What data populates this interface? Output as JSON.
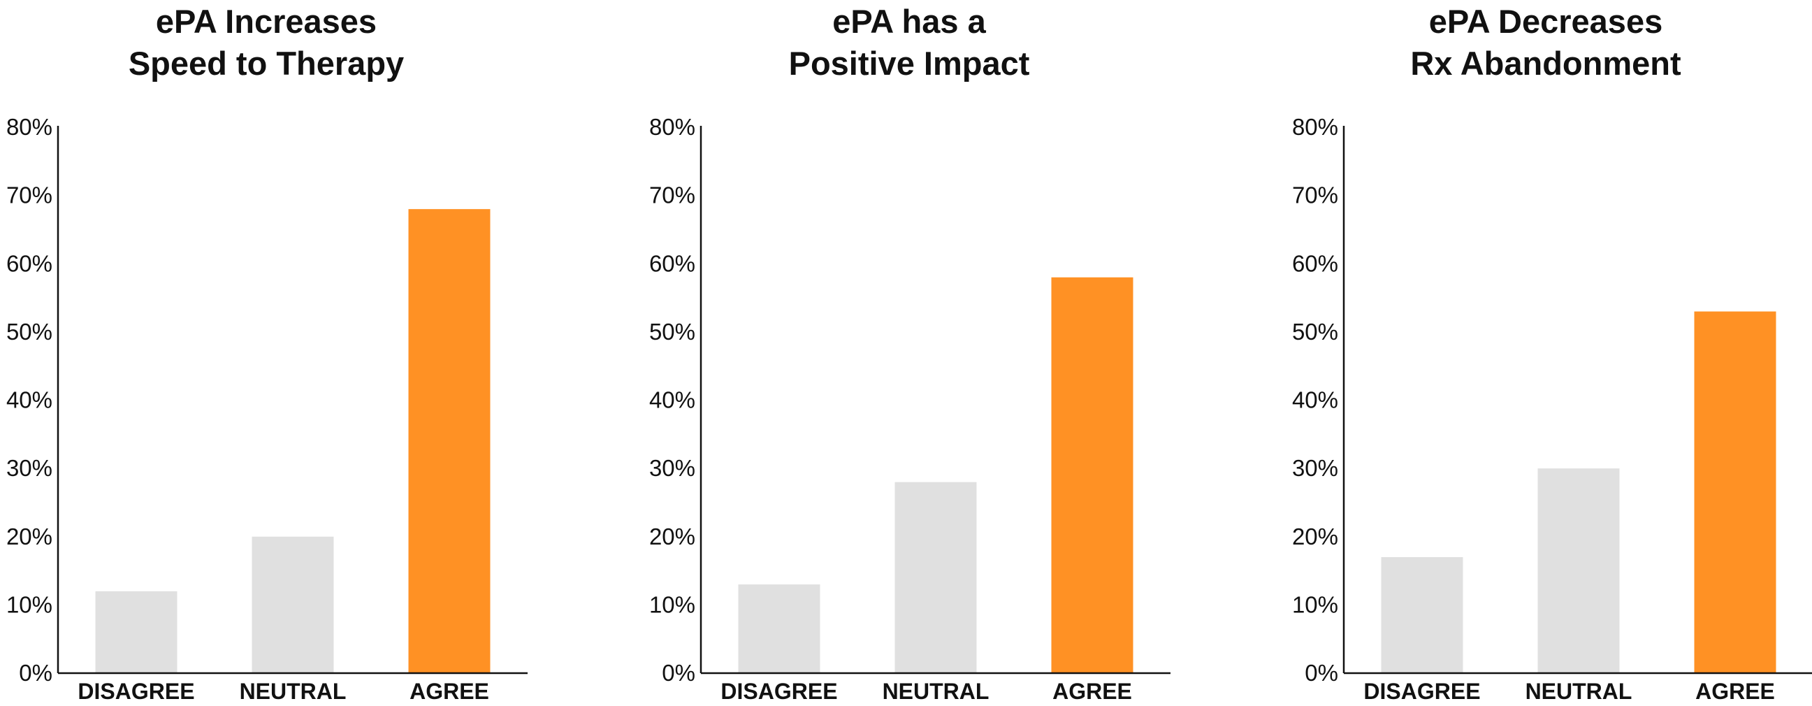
{
  "colors": {
    "highlight": "#FF9124",
    "neutral": "#E0E0E0",
    "text": "#111111",
    "axis": "#111111"
  },
  "chart_data": [
    {
      "type": "bar",
      "title": [
        "ePA Increases",
        "Speed to Therapy"
      ],
      "categories": [
        "DISAGREE",
        "NEUTRAL",
        "AGREE"
      ],
      "values": [
        12,
        20,
        68
      ],
      "ylim": [
        0,
        80
      ],
      "yticks": [
        0,
        10,
        20,
        30,
        40,
        50,
        60,
        70,
        80
      ],
      "ytick_suffix": "%",
      "bar_colors": [
        "neutral",
        "neutral",
        "highlight"
      ],
      "grid": false,
      "legend": "none"
    },
    {
      "type": "bar",
      "title": [
        "ePA has a",
        "Positive Impact"
      ],
      "categories": [
        "DISAGREE",
        "NEUTRAL",
        "AGREE"
      ],
      "values": [
        13,
        28,
        58
      ],
      "ylim": [
        0,
        80
      ],
      "yticks": [
        0,
        10,
        20,
        30,
        40,
        50,
        60,
        70,
        80
      ],
      "ytick_suffix": "%",
      "bar_colors": [
        "neutral",
        "neutral",
        "highlight"
      ],
      "grid": false,
      "legend": "none"
    },
    {
      "type": "bar",
      "title": [
        "ePA Decreases",
        "Rx Abandonment"
      ],
      "categories": [
        "DISAGREE",
        "NEUTRAL",
        "AGREE"
      ],
      "values": [
        17,
        30,
        53
      ],
      "ylim": [
        0,
        80
      ],
      "yticks": [
        0,
        10,
        20,
        30,
        40,
        50,
        60,
        70,
        80
      ],
      "ytick_suffix": "%",
      "bar_colors": [
        "neutral",
        "neutral",
        "highlight"
      ],
      "grid": false,
      "legend": "none"
    }
  ]
}
